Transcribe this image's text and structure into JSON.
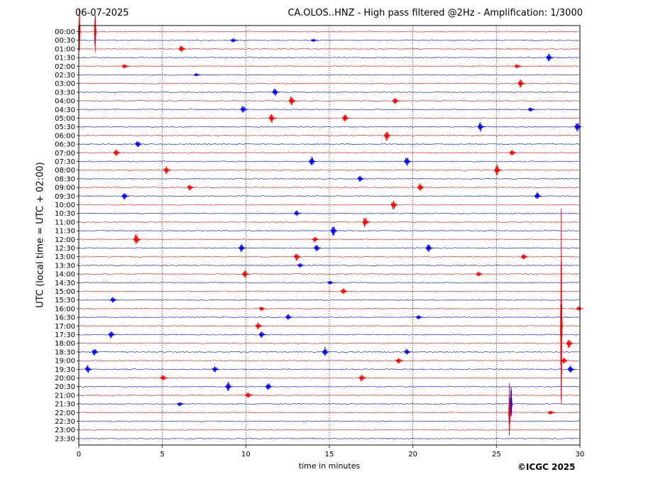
{
  "header": {
    "date": "06-07-2025",
    "title": "CA.OLOS..HNZ - High pass filtered @2Hz - Amplification: 1/3000"
  },
  "footer": {
    "copyright": "©ICGC 2025"
  },
  "chart_data": {
    "type": "line",
    "xlabel": "time in minutes",
    "ylabel": "UTC (local time = UTC + 02:00)",
    "xlim": [
      0,
      30
    ],
    "xticks": [
      0,
      5,
      10,
      15,
      20,
      25,
      30
    ],
    "row_labels": [
      "00:00",
      "00:30",
      "01:00",
      "01:30",
      "02:00",
      "02:30",
      "03:00",
      "03:30",
      "04:00",
      "04:30",
      "05:00",
      "05:30",
      "06:00",
      "06:30",
      "07:00",
      "07:30",
      "08:00",
      "08:30",
      "09:00",
      "09:30",
      "10:00",
      "10:30",
      "11:00",
      "11:30",
      "12:00",
      "12:30",
      "13:00",
      "13:30",
      "14:00",
      "14:30",
      "15:00",
      "15:30",
      "16:00",
      "16:30",
      "17:00",
      "17:30",
      "18:00",
      "18:30",
      "19:00",
      "19:30",
      "20:00",
      "20:30",
      "21:00",
      "21:30",
      "22:00",
      "22:30",
      "23:00",
      "23:30"
    ],
    "series_colors": [
      "#ff0000",
      "#0000ff"
    ],
    "grid": true,
    "events": [
      {
        "row": "00:00",
        "t": 0.05,
        "amp": 3.0
      },
      {
        "row": "00:00",
        "t": 1.0,
        "amp": 3.0
      },
      {
        "row": "00:30",
        "t": 9.3,
        "amp": 0.25
      },
      {
        "row": "00:30",
        "t": 14.1,
        "amp": 0.2
      },
      {
        "row": "01:00",
        "t": 6.2,
        "amp": 0.5
      },
      {
        "row": "01:30",
        "t": 28.2,
        "amp": 0.5
      },
      {
        "row": "02:00",
        "t": 2.8,
        "amp": 0.3
      },
      {
        "row": "02:00",
        "t": 26.3,
        "amp": 0.3
      },
      {
        "row": "02:30",
        "t": 7.1,
        "amp": 0.2
      },
      {
        "row": "03:00",
        "t": 26.5,
        "amp": 0.6
      },
      {
        "row": "03:30",
        "t": 11.8,
        "amp": 0.5
      },
      {
        "row": "04:00",
        "t": 12.8,
        "amp": 0.7
      },
      {
        "row": "04:00",
        "t": 19.0,
        "amp": 0.4
      },
      {
        "row": "04:30",
        "t": 9.9,
        "amp": 0.5
      },
      {
        "row": "04:30",
        "t": 27.1,
        "amp": 0.3
      },
      {
        "row": "05:00",
        "t": 11.6,
        "amp": 0.6
      },
      {
        "row": "05:00",
        "t": 16.0,
        "amp": 0.6
      },
      {
        "row": "05:30",
        "t": 24.1,
        "amp": 0.6
      },
      {
        "row": "05:30",
        "t": 29.9,
        "amp": 0.6
      },
      {
        "row": "06:00",
        "t": 18.5,
        "amp": 0.7
      },
      {
        "row": "06:30",
        "t": 3.6,
        "amp": 0.5
      },
      {
        "row": "07:00",
        "t": 2.3,
        "amp": 0.5
      },
      {
        "row": "07:00",
        "t": 26.0,
        "amp": 0.4
      },
      {
        "row": "07:30",
        "t": 14.0,
        "amp": 0.6
      },
      {
        "row": "07:30",
        "t": 19.7,
        "amp": 0.6
      },
      {
        "row": "08:00",
        "t": 5.3,
        "amp": 0.5
      },
      {
        "row": "08:00",
        "t": 25.1,
        "amp": 0.7
      },
      {
        "row": "08:30",
        "t": 16.9,
        "amp": 0.4
      },
      {
        "row": "09:00",
        "t": 6.7,
        "amp": 0.4
      },
      {
        "row": "09:00",
        "t": 20.5,
        "amp": 0.5
      },
      {
        "row": "09:30",
        "t": 2.8,
        "amp": 0.5
      },
      {
        "row": "09:30",
        "t": 27.5,
        "amp": 0.5
      },
      {
        "row": "10:00",
        "t": 18.9,
        "amp": 0.6
      },
      {
        "row": "10:30",
        "t": 13.1,
        "amp": 0.4
      },
      {
        "row": "11:00",
        "t": 17.2,
        "amp": 0.7
      },
      {
        "row": "11:30",
        "t": 15.3,
        "amp": 0.7
      },
      {
        "row": "12:00",
        "t": 3.5,
        "amp": 0.8
      },
      {
        "row": "12:00",
        "t": 14.2,
        "amp": 0.4
      },
      {
        "row": "12:30",
        "t": 9.8,
        "amp": 0.5
      },
      {
        "row": "12:30",
        "t": 14.3,
        "amp": 0.5
      },
      {
        "row": "12:30",
        "t": 21.0,
        "amp": 0.6
      },
      {
        "row": "13:00",
        "t": 13.1,
        "amp": 0.5
      },
      {
        "row": "13:00",
        "t": 26.7,
        "amp": 0.4
      },
      {
        "row": "13:30",
        "t": 13.3,
        "amp": 0.3
      },
      {
        "row": "14:00",
        "t": 10.0,
        "amp": 0.5
      },
      {
        "row": "14:00",
        "t": 24.0,
        "amp": 0.3
      },
      {
        "row": "14:30",
        "t": 15.1,
        "amp": 0.3
      },
      {
        "row": "15:00",
        "t": 15.9,
        "amp": 0.4
      },
      {
        "row": "15:30",
        "t": 2.1,
        "amp": 0.4
      },
      {
        "row": "16:00",
        "t": 11.0,
        "amp": 0.3
      },
      {
        "row": "16:00",
        "t": 30.0,
        "amp": 0.3
      },
      {
        "row": "16:30",
        "t": 12.6,
        "amp": 0.4
      },
      {
        "row": "16:30",
        "t": 20.4,
        "amp": 0.3
      },
      {
        "row": "17:00",
        "t": 10.8,
        "amp": 0.5
      },
      {
        "row": "17:30",
        "t": 2.0,
        "amp": 0.5
      },
      {
        "row": "17:30",
        "t": 11.0,
        "amp": 0.4
      },
      {
        "row": "18:00",
        "t": 29.4,
        "amp": 0.6
      },
      {
        "row": "18:30",
        "t": 1.0,
        "amp": 0.5
      },
      {
        "row": "18:30",
        "t": 14.8,
        "amp": 0.6
      },
      {
        "row": "18:30",
        "t": 19.7,
        "amp": 0.4
      },
      {
        "row": "19:00",
        "t": 19.2,
        "amp": 0.4
      },
      {
        "row": "19:00",
        "t": 29.1,
        "amp": 0.4
      },
      {
        "row": "19:30",
        "t": 0.6,
        "amp": 0.5
      },
      {
        "row": "19:30",
        "t": 8.2,
        "amp": 0.4
      },
      {
        "row": "19:30",
        "t": 29.5,
        "amp": 0.5
      },
      {
        "row": "20:00",
        "t": 5.1,
        "amp": 0.4
      },
      {
        "row": "20:00",
        "t": 17.0,
        "amp": 0.5
      },
      {
        "row": "20:30",
        "t": 9.0,
        "amp": 0.6
      },
      {
        "row": "20:30",
        "t": 11.4,
        "amp": 0.5
      },
      {
        "row": "21:00",
        "t": 10.2,
        "amp": 0.4
      },
      {
        "row": "21:30",
        "t": 6.1,
        "amp": 0.3
      },
      {
        "row": "21:30",
        "t": 25.9,
        "amp": 2.5
      },
      {
        "row": "22:00",
        "t": 28.3,
        "amp": 0.3
      },
      {
        "row": "22:00",
        "t": 25.8,
        "amp": 3.5
      },
      {
        "row": "17:00",
        "t": 28.9,
        "amp": 14.0
      }
    ]
  }
}
